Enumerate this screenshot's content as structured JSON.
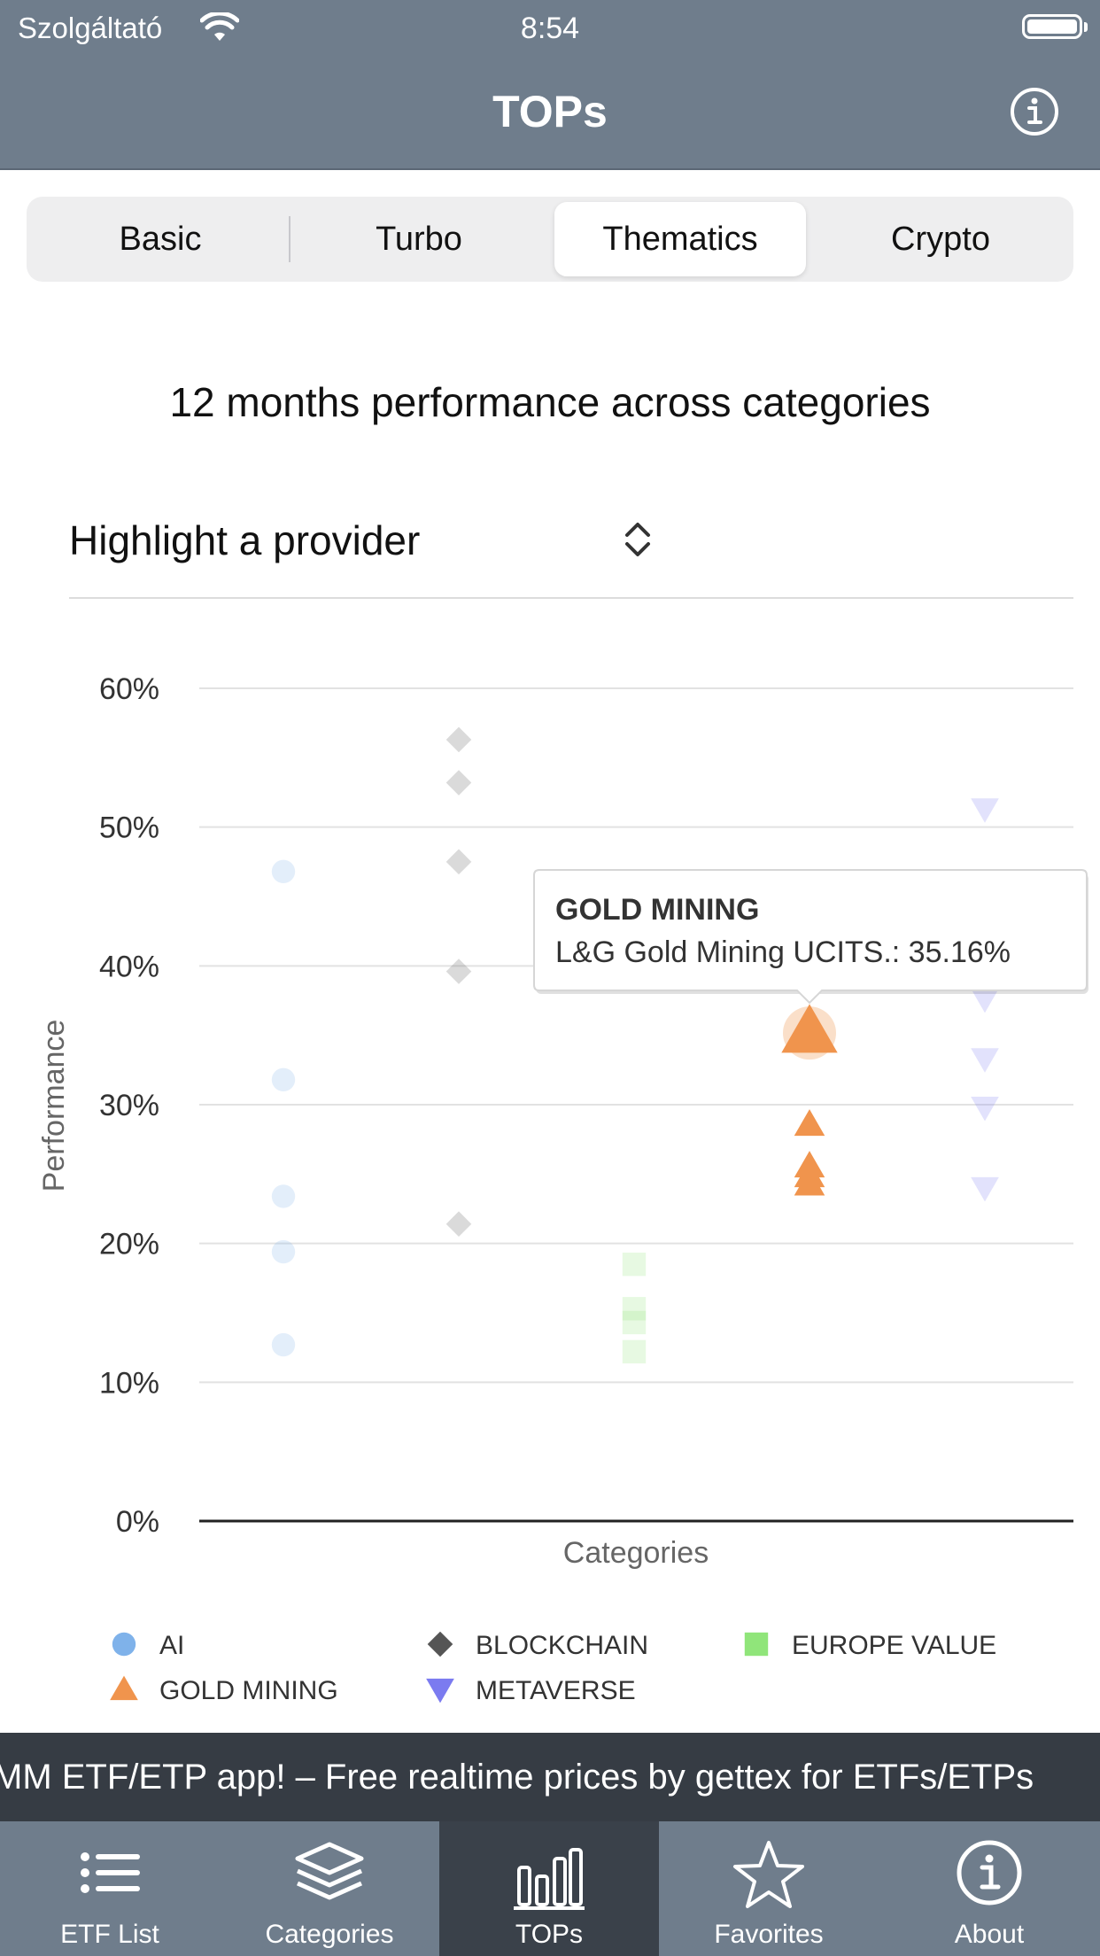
{
  "status_bar": {
    "carrier": "Szolgáltató",
    "time": "8:54"
  },
  "nav": {
    "title": "TOPs",
    "info_icon": "info-circle-icon"
  },
  "segments": [
    {
      "label": "Basic",
      "selected": false
    },
    {
      "label": "Turbo",
      "selected": false
    },
    {
      "label": "Thematics",
      "selected": true
    },
    {
      "label": "Crypto",
      "selected": false
    }
  ],
  "heading": "12 months performance across categories",
  "provider_picker": {
    "label": "Highlight a provider",
    "icon": "up-down-chevron-icon"
  },
  "chart_data": {
    "type": "scatter",
    "xlabel": "Categories",
    "ylabel": "Performance",
    "ylim": [
      0,
      60
    ],
    "yticks": [
      "0%",
      "10%",
      "20%",
      "30%",
      "40%",
      "50%",
      "60%"
    ],
    "grid": true,
    "legend_position": "bottom",
    "series": [
      {
        "name": "AI",
        "color": "#7fb2ea",
        "marker": "circle",
        "faded": true,
        "values": [
          46.8,
          31.8,
          23.4,
          19.4,
          12.7
        ]
      },
      {
        "name": "BLOCKCHAIN",
        "color": "#555555",
        "marker": "diamond",
        "faded": true,
        "values": [
          56.3,
          53.2,
          47.5,
          39.6,
          21.4
        ]
      },
      {
        "name": "EUROPE VALUE",
        "color": "#90e57a",
        "marker": "square",
        "faded": true,
        "values": [
          18.5,
          15.3,
          14.3,
          12.2
        ]
      },
      {
        "name": "GOLD MINING",
        "color": "#f0944d",
        "marker": "triangle-up",
        "faded": false,
        "values": [
          35.16,
          28.6,
          25.6,
          24.9,
          24.3
        ]
      },
      {
        "name": "METAVERSE",
        "color": "#7b7bf0",
        "marker": "triangle-down",
        "faded": true,
        "values": [
          51.3,
          37.6,
          33.3,
          29.8,
          24.0
        ]
      }
    ],
    "tooltip": {
      "series": "GOLD MINING",
      "title": "GOLD MINING",
      "text": "L&G Gold Mining UCITS.: 35.16%",
      "value": 35.16
    }
  },
  "ticker": {
    "text": "MM ETF/ETP app! – Free realtime prices by gettex for ETFs/ETPs"
  },
  "tabs": [
    {
      "label": "ETF List",
      "icon": "list-icon",
      "selected": false
    },
    {
      "label": "Categories",
      "icon": "layers-icon",
      "selected": false
    },
    {
      "label": "TOPs",
      "icon": "bar-chart-icon",
      "selected": true
    },
    {
      "label": "Favorites",
      "icon": "star-icon",
      "selected": false
    },
    {
      "label": "About",
      "icon": "info-circle-icon",
      "selected": false
    }
  ]
}
